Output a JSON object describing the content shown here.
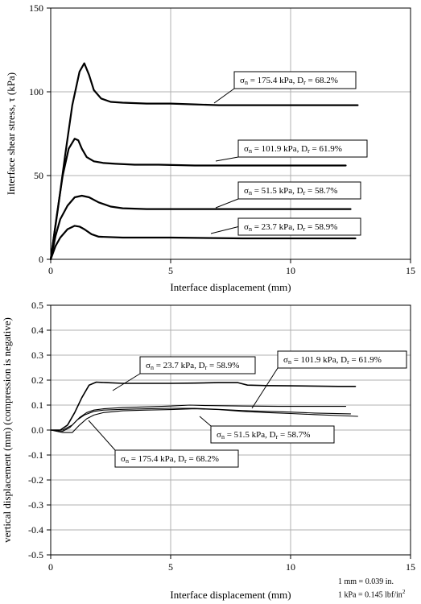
{
  "chart_data": [
    {
      "type": "line",
      "xlabel": "Interface displacement (mm)",
      "ylabel": "Interface shear stress, τ (kPa)",
      "xlim": [
        0,
        15
      ],
      "ylim": [
        0,
        150
      ],
      "xticks": [
        0,
        5,
        10,
        15
      ],
      "yticks": [
        0,
        50,
        100,
        150
      ],
      "grid": true,
      "series": [
        {
          "name": "σn = 175.4 kPa, Dr = 68.2%",
          "label": {
            "sig": "σ",
            "sub1": "n",
            "mid": " = 175.4 kPa, D",
            "sub2": "r",
            "end": " = 68.2%"
          },
          "x": [
            0,
            0.3,
            0.6,
            0.9,
            1.2,
            1.4,
            1.6,
            1.8,
            2.1,
            2.5,
            3.0,
            4.0,
            5.0,
            6.0,
            7.0,
            8.0,
            9.0,
            10.0,
            11.0,
            12.0,
            12.8
          ],
          "y": [
            0,
            30,
            62,
            92,
            112,
            117,
            110,
            101,
            96,
            94,
            93.5,
            93,
            93,
            92.5,
            92,
            92,
            92,
            92,
            92,
            92,
            92
          ]
        },
        {
          "name": "σn = 101.9 kPa, Dr = 61.9%",
          "label": {
            "sig": "σ",
            "sub1": "n",
            "mid": " = 101.9 kPa, D",
            "sub2": "r",
            "end": " = 61.9%"
          },
          "x": [
            0,
            0.25,
            0.5,
            0.75,
            1.0,
            1.15,
            1.3,
            1.5,
            1.8,
            2.2,
            2.7,
            3.5,
            4.5,
            6.0,
            8.0,
            10.0,
            12.3
          ],
          "y": [
            0,
            26,
            50,
            66,
            72,
            71,
            66,
            61,
            58.5,
            57.5,
            57,
            56.5,
            56.5,
            56,
            56,
            56,
            56
          ]
        },
        {
          "name": "σn = 51.5 kPa, Dr = 58.7%",
          "label": {
            "sig": "σ",
            "sub1": "n",
            "mid": " = 51.5 kPa, D",
            "sub2": "r",
            "end": " = 58.7%"
          },
          "x": [
            0,
            0.2,
            0.4,
            0.7,
            1.0,
            1.3,
            1.6,
            2.0,
            2.5,
            3.0,
            4.0,
            6.0,
            8.0,
            10.0,
            12.5
          ],
          "y": [
            0,
            14,
            24,
            32,
            37,
            38,
            37,
            34,
            31.5,
            30.5,
            30,
            30,
            30,
            30,
            30
          ]
        },
        {
          "name": "σn = 23.7 kPa, Dr = 58.9%",
          "label": {
            "sig": "σ",
            "sub1": "n",
            "mid": " = 23.7 kPa, D",
            "sub2": "r",
            "end": " = 58.9%"
          },
          "x": [
            0,
            0.2,
            0.4,
            0.7,
            1.0,
            1.2,
            1.4,
            1.7,
            2.0,
            3.0,
            5.0,
            8.0,
            10.0,
            12.7
          ],
          "y": [
            0,
            8,
            13,
            18,
            20,
            19.5,
            18,
            15,
            13.5,
            13,
            13,
            12.5,
            12.5,
            12.5
          ]
        }
      ]
    },
    {
      "type": "line",
      "xlabel": "Interface displacement (mm)",
      "ylabel": "vertical displacement (mm) (compression is negative)",
      "xlim": [
        0,
        15
      ],
      "ylim": [
        -0.5,
        0.5
      ],
      "xticks": [
        0,
        5,
        10,
        15
      ],
      "yticks": [
        -0.5,
        -0.4,
        -0.3,
        -0.2,
        -0.1,
        0.0,
        0.1,
        0.2,
        0.3,
        0.4,
        0.5
      ],
      "grid": true,
      "series": [
        {
          "name": "σn = 23.7 kPa, Dr = 58.9%",
          "label": {
            "sig": "σ",
            "sub1": "n",
            "mid": " = 23.7 kPa, D",
            "sub2": "r",
            "end": " = 58.9%"
          },
          "x": [
            0,
            0.4,
            0.7,
            1.0,
            1.3,
            1.6,
            1.9,
            2.3,
            3.0,
            4.0,
            5.0,
            6.0,
            7.0,
            7.8,
            8.2,
            9.0,
            10.0,
            11.0,
            12.0,
            12.7
          ],
          "y": [
            0,
            0,
            0.02,
            0.07,
            0.13,
            0.18,
            0.192,
            0.19,
            0.187,
            0.187,
            0.187,
            0.188,
            0.19,
            0.19,
            0.18,
            0.178,
            0.177,
            0.176,
            0.175,
            0.175
          ]
        },
        {
          "name": "σn = 101.9 kPa, Dr = 61.9%",
          "label": {
            "sig": "σ",
            "sub1": "n",
            "mid": " = 101.9 kPa, D",
            "sub2": "r",
            "end": " = 61.9%"
          },
          "x": [
            0,
            0.5,
            0.9,
            1.2,
            1.5,
            1.8,
            2.2,
            3.0,
            4.0,
            5.0,
            5.8,
            6.5,
            8.0,
            9.5,
            11.0,
            12.3
          ],
          "y": [
            0,
            0,
            0.02,
            0.05,
            0.07,
            0.08,
            0.085,
            0.09,
            0.093,
            0.096,
            0.1,
            0.098,
            0.096,
            0.095,
            0.095,
            0.095
          ]
        },
        {
          "name": "σn = 51.5 kPa, Dr = 58.7%",
          "label": {
            "sig": "σ",
            "sub1": "n",
            "mid": " = 51.5 kPa, D",
            "sub2": "r",
            "end": " = 58.7%"
          },
          "x": [
            0,
            0.5,
            0.8,
            1.1,
            1.4,
            1.8,
            2.2,
            3.0,
            4.0,
            5.0,
            6.0,
            7.0,
            8.0,
            9.0,
            10.0,
            11.0,
            12.5
          ],
          "y": [
            0,
            -0.005,
            0.01,
            0.04,
            0.06,
            0.075,
            0.08,
            0.083,
            0.085,
            0.087,
            0.087,
            0.083,
            0.078,
            0.075,
            0.072,
            0.068,
            0.065
          ]
        },
        {
          "name": "σn = 175.4 kPa, Dr = 68.2%",
          "label": {
            "sig": "σ",
            "sub1": "n",
            "mid": " = 175.4 kPa, D",
            "sub2": "r",
            "end": " = 68.2%"
          },
          "x": [
            0,
            0.5,
            0.9,
            1.2,
            1.5,
            1.8,
            2.2,
            3.0,
            4.0,
            5.0,
            6.0,
            7.0,
            8.0,
            9.0,
            10.0,
            11.0,
            12.0,
            12.8
          ],
          "y": [
            0,
            -0.01,
            -0.01,
            0.02,
            0.045,
            0.06,
            0.07,
            0.077,
            0.08,
            0.082,
            0.085,
            0.082,
            0.075,
            0.07,
            0.066,
            0.062,
            0.058,
            0.055
          ]
        }
      ]
    }
  ],
  "conversion_notes": {
    "line1": "1 mm = 0.039 in.",
    "line2_prefix": "1 kPa = 0.145 lbf/in",
    "line2_sup": "2"
  }
}
